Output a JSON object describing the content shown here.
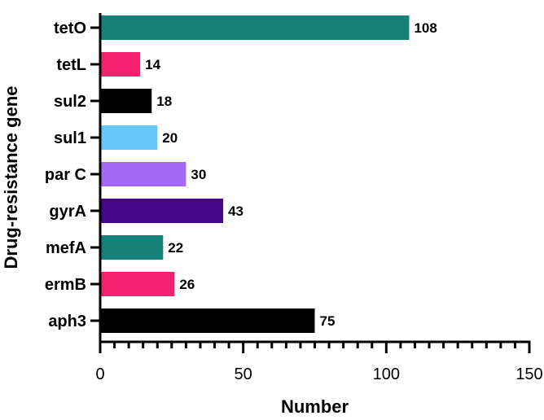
{
  "chart_data": {
    "type": "bar",
    "orientation": "horizontal",
    "xlabel": "Number",
    "ylabel": "Drug-resistance gene",
    "xlim": [
      0,
      150
    ],
    "x_ticks": [
      "0",
      "50",
      "100",
      "150"
    ],
    "grid": false,
    "categories": [
      "tetO",
      "tetL",
      "sul2",
      "sul1",
      "par C",
      "gyrA",
      "mefA",
      "ermB",
      "aph3"
    ],
    "values": [
      108,
      14,
      18,
      20,
      30,
      43,
      22,
      26,
      75
    ],
    "value_labels": [
      "108",
      "14",
      "18",
      "20",
      "30",
      "43",
      "22",
      "26",
      "75"
    ],
    "colors": [
      "#158078",
      "#f5206e",
      "#000000",
      "#66c8f8",
      "#a569f5",
      "#45088a",
      "#158078",
      "#f5206e",
      "#000000"
    ]
  }
}
